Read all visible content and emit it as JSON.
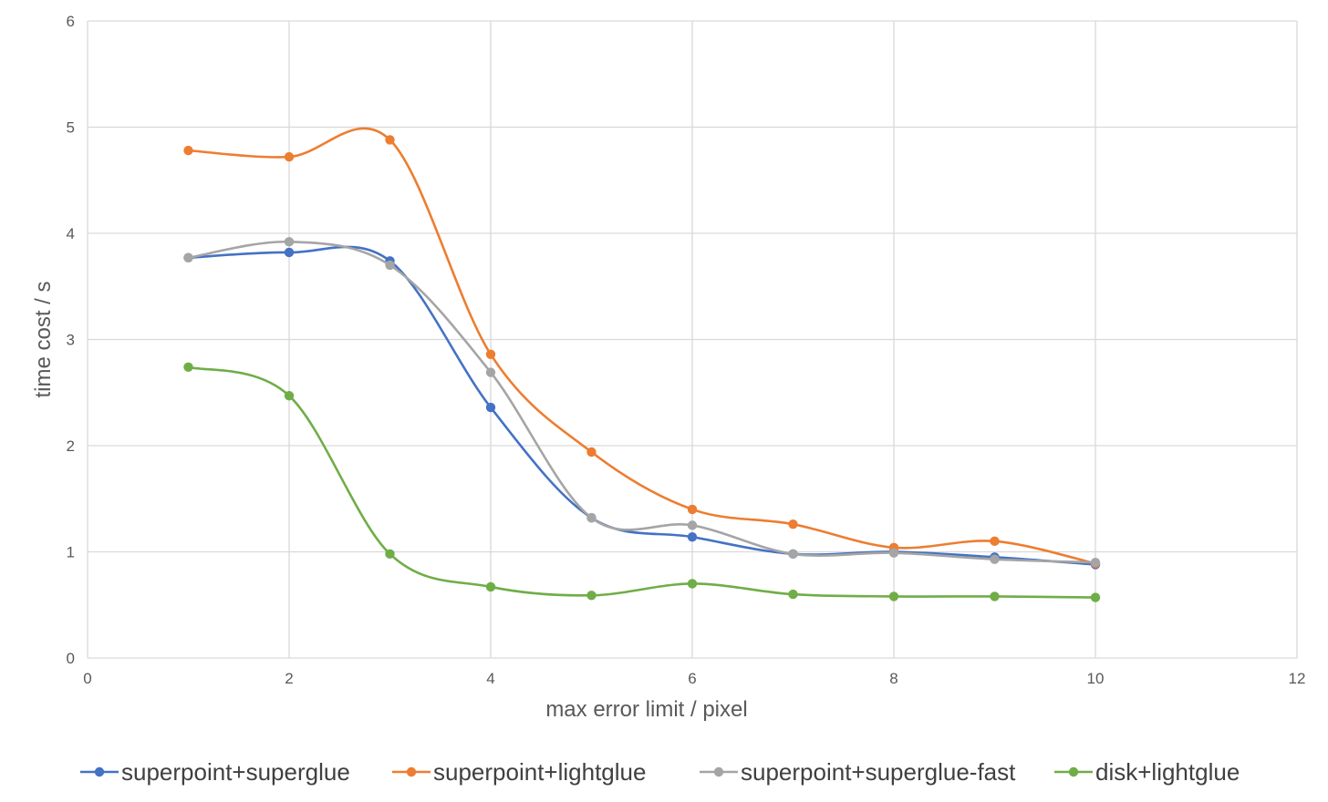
{
  "chart_data": {
    "type": "line",
    "smooth": true,
    "title": "",
    "xlabel": "max error limit / pixel",
    "ylabel": "time cost / s",
    "xlim": [
      0,
      12
    ],
    "ylim": [
      0,
      6
    ],
    "xticks": [
      "0",
      "2",
      "4",
      "6",
      "8",
      "10",
      "12"
    ],
    "yticks": [
      "0",
      "1",
      "2",
      "3",
      "4",
      "5",
      "6"
    ],
    "grid": true,
    "legend_position": "bottom",
    "x": [
      1,
      2,
      3,
      4,
      5,
      6,
      7,
      8,
      9,
      10
    ],
    "series": [
      {
        "name": "superpoint+superglue",
        "color": "#4472C4",
        "values": [
          3.77,
          3.82,
          3.74,
          2.36,
          1.32,
          1.14,
          0.98,
          1.0,
          0.95,
          0.88
        ]
      },
      {
        "name": "superpoint+lightglue",
        "color": "#ED7D31",
        "values": [
          4.78,
          4.72,
          4.88,
          2.86,
          1.94,
          1.4,
          1.26,
          1.04,
          1.1,
          0.89
        ]
      },
      {
        "name": "superpoint+superglue-fast",
        "color": "#A5A5A5",
        "values": [
          3.77,
          3.92,
          3.7,
          2.69,
          1.32,
          1.25,
          0.98,
          0.99,
          0.93,
          0.9
        ]
      },
      {
        "name": "disk+lightglue",
        "color": "#70AD47",
        "values": [
          2.74,
          2.47,
          0.98,
          0.67,
          0.59,
          0.7,
          0.6,
          0.58,
          0.58,
          0.57
        ]
      }
    ]
  }
}
